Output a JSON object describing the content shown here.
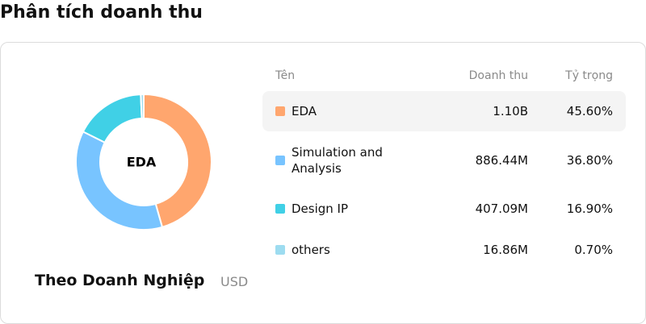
{
  "header": {
    "title": "Phân tích doanh thu"
  },
  "chart_data": {
    "type": "pie",
    "center_label": "EDA",
    "title": "Theo Doanh Nghiệp",
    "unit": "USD",
    "categories": [
      "EDA",
      "Simulation and Analysis",
      "Design IP",
      "others"
    ],
    "values": [
      45.6,
      36.8,
      16.9,
      0.7
    ],
    "value_labels": [
      "45.60%",
      "36.80%",
      "16.90%",
      "0.70%"
    ],
    "colors": [
      "#ffa66e",
      "#78c4ff",
      "#40d0e6",
      "#9ddcf0"
    ]
  },
  "table": {
    "columns": [
      "Tên",
      "Doanh thu",
      "Tỷ trọng"
    ],
    "revenue": [
      "1.10B",
      "886.44M",
      "407.09M",
      "16.86M"
    ]
  }
}
